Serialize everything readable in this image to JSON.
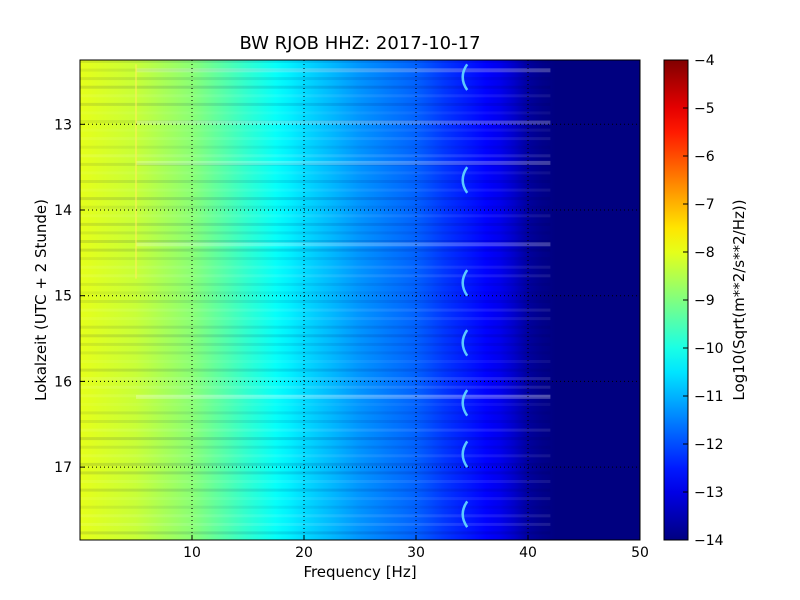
{
  "chart_data": {
    "type": "heatmap",
    "title": "BW RJOB HHZ: 2017-10-17",
    "xlabel": "Frequency [Hz]",
    "ylabel": "Lokalzeit (UTC + 2 Stunde)",
    "xlim": [
      0,
      50
    ],
    "ylim": [
      12.25,
      17.85
    ],
    "y_inverted": true,
    "x_ticks": [
      10,
      20,
      30,
      40,
      50
    ],
    "y_ticks": [
      13,
      14,
      15,
      16,
      17
    ],
    "grid": "dotted",
    "colormap": "jet",
    "colorbar": {
      "label": "Log10(Sqrt(m**2/s**2/Hz))",
      "range": [
        -14,
        -4
      ],
      "ticks": [
        -4,
        -5,
        -6,
        -7,
        -8,
        -9,
        -10,
        -11,
        -12,
        -13,
        -14
      ]
    },
    "value_profile_by_frequency": {
      "x": [
        0,
        5,
        10,
        15,
        20,
        25,
        30,
        33,
        36,
        38,
        40,
        42,
        45,
        50
      ],
      "values": [
        -8.0,
        -8.3,
        -8.9,
        -9.8,
        -10.6,
        -11.3,
        -11.8,
        -12.3,
        -12.7,
        -13.0,
        -13.7,
        -14.0,
        -14.0,
        -14.0
      ]
    },
    "features": {
      "horizontal_bands_at_time": [
        12.37,
        12.98,
        13.45,
        14.4,
        16.18
      ],
      "vertical_line_at_frequency": 5,
      "recurring_tone_near_frequency": 34.3
    }
  }
}
